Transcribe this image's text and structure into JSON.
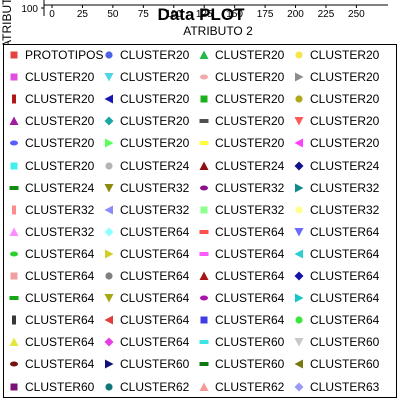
{
  "chart_data": {
    "type": "scatter",
    "title": "Data PLOT",
    "xlabel": "ATRIBUTO 2",
    "ylabel": "ATRIBUTO",
    "xlim": [
      0,
      270
    ],
    "x_ticks": [
      0,
      25,
      50,
      75,
      100,
      125,
      150,
      175,
      200,
      225,
      250
    ],
    "y_ticks": [
      100
    ],
    "legend_position": "bottom",
    "series": [
      {
        "name": "PROTOTIPOS",
        "marker": "square",
        "color": "#e0443c"
      },
      {
        "name": "CLUSTER20",
        "marker": "circle",
        "color": "#4f63e6"
      },
      {
        "name": "CLUSTER20",
        "marker": "triangle-up",
        "color": "#27b84a"
      },
      {
        "name": "CLUSTER20",
        "marker": "circle",
        "color": "#f5e64a"
      },
      {
        "name": "CLUSTER20",
        "marker": "square",
        "color": "#e04fe0"
      },
      {
        "name": "CLUSTER20",
        "marker": "triangle-down",
        "color": "#4fd6e6"
      },
      {
        "name": "CLUSTER20",
        "marker": "ellipse",
        "color": "#f2a8a8"
      },
      {
        "name": "CLUSTER20",
        "marker": "triangle-right",
        "color": "#8c8c8c"
      },
      {
        "name": "CLUSTER20",
        "marker": "bar-v",
        "color": "#b01818"
      },
      {
        "name": "CLUSTER20",
        "marker": "triangle-left",
        "color": "#1818b0"
      },
      {
        "name": "CLUSTER20",
        "marker": "square",
        "color": "#1cb01c"
      },
      {
        "name": "CLUSTER20",
        "marker": "circle",
        "color": "#b0a81c"
      },
      {
        "name": "CLUSTER20",
        "marker": "triangle-up",
        "color": "#a01ca0"
      },
      {
        "name": "CLUSTER20",
        "marker": "diamond",
        "color": "#1ca6a6"
      },
      {
        "name": "CLUSTER20",
        "marker": "bar-h",
        "color": "#505050"
      },
      {
        "name": "CLUSTER20",
        "marker": "triangle-down",
        "color": "#ff5a5a"
      },
      {
        "name": "CLUSTER20",
        "marker": "ellipse",
        "color": "#5a5aff"
      },
      {
        "name": "CLUSTER20",
        "marker": "triangle-right",
        "color": "#5aff5a"
      },
      {
        "name": "CLUSTER20",
        "marker": "bar-h",
        "color": "#ffff40"
      },
      {
        "name": "CLUSTER20",
        "marker": "triangle-left",
        "color": "#ff40ff"
      },
      {
        "name": "CLUSTER20",
        "marker": "square",
        "color": "#40f0f0"
      },
      {
        "name": "CLUSTER24",
        "marker": "circle",
        "color": "#b4b4b4"
      },
      {
        "name": "CLUSTER24",
        "marker": "triangle-up",
        "color": "#8c1010"
      },
      {
        "name": "CLUSTER24",
        "marker": "diamond",
        "color": "#10108c"
      },
      {
        "name": "CLUSTER24",
        "marker": "bar-h",
        "color": "#108c10"
      },
      {
        "name": "CLUSTER32",
        "marker": "triangle-down",
        "color": "#8c8c10"
      },
      {
        "name": "CLUSTER32",
        "marker": "ellipse",
        "color": "#8c108c"
      },
      {
        "name": "CLUSTER32",
        "marker": "triangle-right",
        "color": "#108c8c"
      },
      {
        "name": "CLUSTER32",
        "marker": "bar-v",
        "color": "#ff8c8c"
      },
      {
        "name": "CLUSTER32",
        "marker": "triangle-left",
        "color": "#8c8cff"
      },
      {
        "name": "CLUSTER32",
        "marker": "square",
        "color": "#8cff8c"
      },
      {
        "name": "CLUSTER32",
        "marker": "circle",
        "color": "#ffff8c"
      },
      {
        "name": "CLUSTER32",
        "marker": "triangle-up",
        "color": "#ff8cff"
      },
      {
        "name": "CLUSTER64",
        "marker": "diamond",
        "color": "#8cffff"
      },
      {
        "name": "CLUSTER64",
        "marker": "bar-h",
        "color": "#ff5050"
      },
      {
        "name": "CLUSTER64",
        "marker": "triangle-down",
        "color": "#6a6aff"
      },
      {
        "name": "CLUSTER64",
        "marker": "ellipse",
        "color": "#2ccf2c"
      },
      {
        "name": "CLUSTER64",
        "marker": "triangle-right",
        "color": "#cfcf2c"
      },
      {
        "name": "CLUSTER64",
        "marker": "bar-h",
        "color": "#ff5cff"
      },
      {
        "name": "CLUSTER64",
        "marker": "triangle-left",
        "color": "#2ccfcf"
      },
      {
        "name": "CLUSTER64",
        "marker": "square",
        "color": "#f0a0a0"
      },
      {
        "name": "CLUSTER64",
        "marker": "circle",
        "color": "#808080"
      },
      {
        "name": "CLUSTER64",
        "marker": "triangle-up",
        "color": "#a81414"
      },
      {
        "name": "CLUSTER64",
        "marker": "diamond",
        "color": "#1414a8"
      },
      {
        "name": "CLUSTER64",
        "marker": "bar-h",
        "color": "#14a814"
      },
      {
        "name": "CLUSTER64",
        "marker": "triangle-down",
        "color": "#a8a814"
      },
      {
        "name": "CLUSTER64",
        "marker": "ellipse",
        "color": "#a814a8"
      },
      {
        "name": "CLUSTER64",
        "marker": "triangle-right",
        "color": "#14c8c8"
      },
      {
        "name": "CLUSTER64",
        "marker": "bar-v",
        "color": "#383838"
      },
      {
        "name": "CLUSTER64",
        "marker": "triangle-left",
        "color": "#e63c3c"
      },
      {
        "name": "CLUSTER64",
        "marker": "square",
        "color": "#3c3ce6"
      },
      {
        "name": "CLUSTER64",
        "marker": "circle",
        "color": "#3ce63c"
      },
      {
        "name": "CLUSTER64",
        "marker": "triangle-up",
        "color": "#e6e63c"
      },
      {
        "name": "CLUSTER64",
        "marker": "diamond",
        "color": "#e63ce6"
      },
      {
        "name": "CLUSTER60",
        "marker": "bar-h",
        "color": "#3ce6e6"
      },
      {
        "name": "CLUSTER60",
        "marker": "triangle-down",
        "color": "#c8c8c8"
      },
      {
        "name": "CLUSTER64",
        "marker": "ellipse",
        "color": "#781010"
      },
      {
        "name": "CLUSTER60",
        "marker": "triangle-right",
        "color": "#101078"
      },
      {
        "name": "CLUSTER60",
        "marker": "bar-h",
        "color": "#107810"
      },
      {
        "name": "CLUSTER60",
        "marker": "triangle-left",
        "color": "#787810"
      },
      {
        "name": "CLUSTER60",
        "marker": "square",
        "color": "#781078"
      },
      {
        "name": "CLUSTER62",
        "marker": "circle",
        "color": "#107878"
      },
      {
        "name": "CLUSTER62",
        "marker": "triangle-up",
        "color": "#f59a9a"
      },
      {
        "name": "CLUSTER63",
        "marker": "diamond",
        "color": "#9a9af5"
      }
    ]
  }
}
